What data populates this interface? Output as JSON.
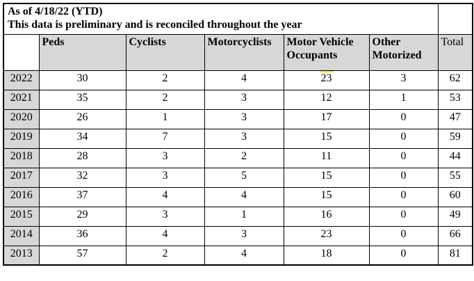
{
  "title": {
    "line1": "As of 4/18/22 (YTD)",
    "line2": "This data is preliminary and is reconciled throughout the year"
  },
  "table": {
    "corner_label": "",
    "columns": [
      "Peds",
      "Cyclists",
      "Motorcyclists",
      "Motor Vehicle Occupants",
      "Other Motorized",
      "Total"
    ],
    "rows": [
      {
        "year": "2022",
        "values": [
          "30",
          "2",
          "4",
          "23",
          "3",
          "62"
        ]
      },
      {
        "year": "2021",
        "values": [
          "35",
          "2",
          "3",
          "12",
          "1",
          "53"
        ]
      },
      {
        "year": "2020",
        "values": [
          "26",
          "1",
          "3",
          "17",
          "0",
          "47"
        ]
      },
      {
        "year": "2019",
        "values": [
          "34",
          "7",
          "3",
          "15",
          "0",
          "59"
        ]
      },
      {
        "year": "2018",
        "values": [
          "28",
          "3",
          "2",
          "11",
          "0",
          "44"
        ]
      },
      {
        "year": "2017",
        "values": [
          "32",
          "3",
          "5",
          "15",
          "0",
          "55"
        ]
      },
      {
        "year": "2016",
        "values": [
          "37",
          "4",
          "4",
          "15",
          "0",
          "60"
        ]
      },
      {
        "year": "2015",
        "values": [
          "29",
          "3",
          "1",
          "16",
          "0",
          "49"
        ]
      },
      {
        "year": "2014",
        "values": [
          "36",
          "4",
          "3",
          "23",
          "0",
          "66"
        ]
      },
      {
        "year": "2013",
        "values": [
          "57",
          "2",
          "4",
          "18",
          "0",
          "81"
        ]
      }
    ],
    "highlight_mark": {
      "row_year": "2022",
      "column": "Motor Vehicle Occupants",
      "col_index": 3,
      "description": "yellow mark above value"
    }
  },
  "colors": {
    "header_bg": "#d7d7d7",
    "border": "#000000",
    "page_bg": "#ffffff",
    "highlight": "#ffeb00"
  }
}
